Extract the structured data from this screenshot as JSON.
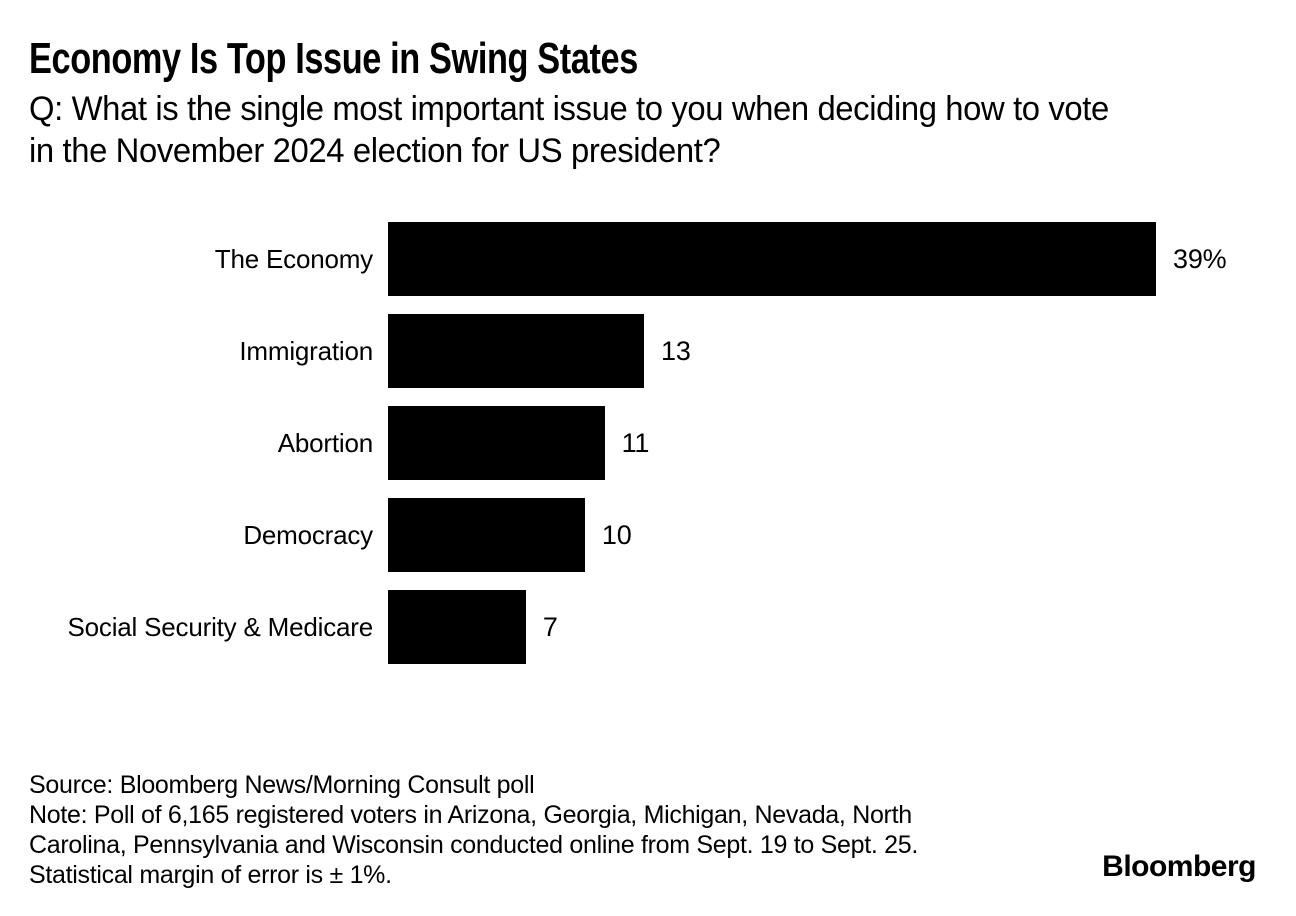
{
  "header": {
    "title": "Economy Is Top Issue in Swing States",
    "subtitle_lines": [
      "Q: What is the single most important issue to you when deciding how to vote",
      "in the November 2024 election for US president?"
    ]
  },
  "chart_data": {
    "type": "bar",
    "orientation": "horizontal",
    "title": "Economy Is Top Issue in Swing States",
    "subtitle": "Q: What is the single most important issue to you when deciding how to vote in the November 2024 election for US president?",
    "categories": [
      "The Economy",
      "Immigration",
      "Abortion",
      "Democracy",
      "Social Security & Medicare"
    ],
    "values": [
      39,
      13,
      11,
      10,
      7
    ],
    "value_labels": [
      "39%",
      "13",
      "11",
      "10",
      "7"
    ],
    "unit": "percent of respondents",
    "xlim": [
      0,
      39
    ],
    "grid": false,
    "legend": "none",
    "bar_color": "#000000"
  },
  "footer": {
    "source": "Source: Bloomberg News/Morning Consult poll",
    "note_lines": [
      "Note: Poll of 6,165 registered voters in Arizona, Georgia, Michigan, Nevada, North",
      "Carolina, Pennsylvania and Wisconsin conducted online from Sept. 19 to Sept. 25.",
      "Statistical margin of error is ± 1%."
    ],
    "brand": "Bloomberg"
  },
  "colors": {
    "background": "#ffffff",
    "bar": "#000000",
    "text": "#000000"
  }
}
